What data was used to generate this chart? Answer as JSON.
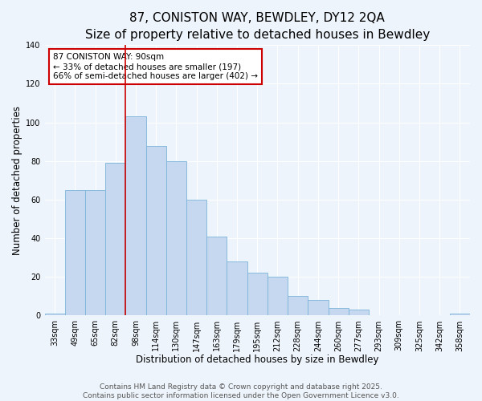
{
  "title": "87, CONISTON WAY, BEWDLEY, DY12 2QA",
  "subtitle": "Size of property relative to detached houses in Bewdley",
  "xlabel": "Distribution of detached houses by size in Bewdley",
  "ylabel": "Number of detached properties",
  "categories": [
    "33sqm",
    "49sqm",
    "65sqm",
    "82sqm",
    "98sqm",
    "114sqm",
    "130sqm",
    "147sqm",
    "163sqm",
    "179sqm",
    "195sqm",
    "212sqm",
    "228sqm",
    "244sqm",
    "260sqm",
    "277sqm",
    "293sqm",
    "309sqm",
    "325sqm",
    "342sqm",
    "358sqm"
  ],
  "values": [
    1,
    65,
    65,
    79,
    103,
    88,
    80,
    60,
    41,
    28,
    22,
    20,
    10,
    8,
    4,
    3,
    0,
    0,
    0,
    0,
    1
  ],
  "bar_color": "#c5d8f0",
  "bar_edge_color": "#7ab4d8",
  "vline_x_index": 3.5,
  "vline_color": "#cc0000",
  "annotation_text": "87 CONISTON WAY: 90sqm\n← 33% of detached houses are smaller (197)\n66% of semi-detached houses are larger (402) →",
  "annotation_box_facecolor": "#ffffff",
  "annotation_box_edgecolor": "#cc0000",
  "ylim": [
    0,
    140
  ],
  "yticks": [
    0,
    20,
    40,
    60,
    80,
    100,
    120,
    140
  ],
  "footer_line1": "Contains HM Land Registry data © Crown copyright and database right 2025.",
  "footer_line2": "Contains public sector information licensed under the Open Government Licence v3.0.",
  "bg_color": "#eef4fb",
  "title_fontsize": 11,
  "subtitle_fontsize": 9.5,
  "axis_label_fontsize": 8.5,
  "tick_fontsize": 7,
  "annotation_fontsize": 7.5,
  "footer_fontsize": 6.5
}
